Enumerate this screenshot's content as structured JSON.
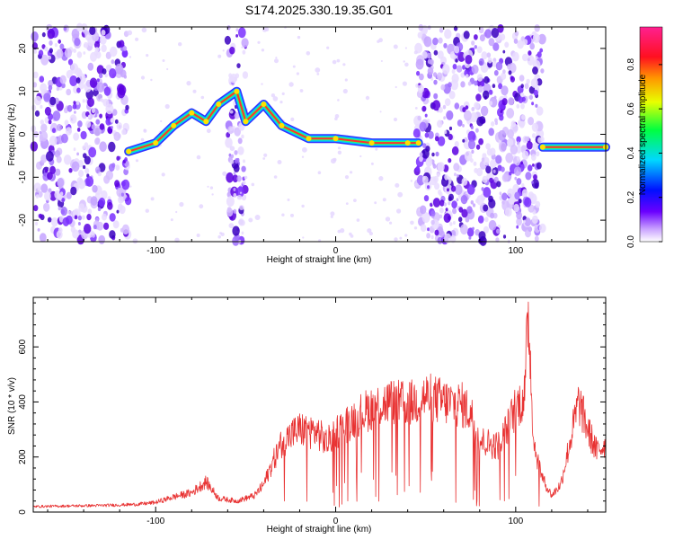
{
  "title": "S174.2025.330.19.35.G01",
  "chart_data": [
    {
      "type": "heatmap",
      "xlabel": "Height of straight line (km)",
      "ylabel": "Frequency (Hz)",
      "xlim": [
        -168,
        150
      ],
      "ylim": [
        -25,
        25
      ],
      "xticks": [
        -100,
        0,
        100
      ],
      "yticks": [
        -20,
        -10,
        0,
        10,
        20
      ],
      "colorbar": {
        "label": "Normalized spectral amplitude",
        "range": [
          0,
          0.97
        ],
        "ticks": [
          0.0,
          0.2,
          0.4,
          0.6,
          0.8
        ],
        "tick_labels": [
          "0.0",
          "0.2",
          "0.4",
          "0.6",
          "0.8"
        ],
        "colormap": "rainbow (white-violet-blue-cyan-green-yellow-orange-red-magenta)"
      },
      "ridge": [
        {
          "x": -115,
          "y": -4
        },
        {
          "x": -100,
          "y": -2
        },
        {
          "x": -90,
          "y": 2
        },
        {
          "x": -80,
          "y": 5
        },
        {
          "x": -72,
          "y": 3
        },
        {
          "x": -65,
          "y": 7
        },
        {
          "x": -55,
          "y": 10
        },
        {
          "x": -50,
          "y": 3
        },
        {
          "x": -40,
          "y": 7
        },
        {
          "x": -30,
          "y": 2
        },
        {
          "x": -15,
          "y": -1
        },
        {
          "x": 0,
          "y": -1
        },
        {
          "x": 20,
          "y": -2
        },
        {
          "x": 40,
          "y": -2
        },
        {
          "x": 46,
          "y": -2
        },
        {
          "x": 115,
          "y": -3
        },
        {
          "x": 150,
          "y": -3
        }
      ],
      "noise_regions": [
        {
          "x": [
            -168,
            -115
          ],
          "y": [
            -25,
            25
          ]
        },
        {
          "x": [
            -60,
            -50
          ],
          "y": [
            -25,
            25
          ]
        },
        {
          "x": [
            45,
            115
          ],
          "y": [
            -25,
            25
          ]
        }
      ]
    },
    {
      "type": "line",
      "xlabel": "Height of straight line (km)",
      "ylabel": "SNR (10 * v/v)",
      "xlim": [
        -168,
        150
      ],
      "ylim": [
        0,
        780
      ],
      "xticks": [
        -100,
        0,
        100
      ],
      "yticks": [
        0,
        200,
        400,
        600
      ],
      "color": "#e83232",
      "series": [
        {
          "values": [
            [
              -168,
              20
            ],
            [
              -150,
              22
            ],
            [
              -130,
              24
            ],
            [
              -110,
              28
            ],
            [
              -100,
              35
            ],
            [
              -90,
              55
            ],
            [
              -80,
              70
            ],
            [
              -72,
              110
            ],
            [
              -65,
              50
            ],
            [
              -55,
              40
            ],
            [
              -45,
              60
            ],
            [
              -40,
              100
            ],
            [
              -35,
              180
            ],
            [
              -30,
              250
            ],
            [
              -25,
              280
            ],
            [
              -20,
              300
            ],
            [
              -10,
              290
            ],
            [
              -5,
              250
            ],
            [
              0,
              290
            ],
            [
              10,
              340
            ],
            [
              20,
              380
            ],
            [
              30,
              400
            ],
            [
              40,
              390
            ],
            [
              50,
              420
            ],
            [
              60,
              400
            ],
            [
              70,
              390
            ],
            [
              75,
              360
            ],
            [
              80,
              260
            ],
            [
              90,
              240
            ],
            [
              95,
              300
            ],
            [
              100,
              380
            ],
            [
              105,
              420
            ],
            [
              107,
              740
            ],
            [
              110,
              250
            ],
            [
              115,
              120
            ],
            [
              120,
              60
            ],
            [
              125,
              100
            ],
            [
              130,
              250
            ],
            [
              135,
              400
            ],
            [
              140,
              300
            ],
            [
              145,
              220
            ],
            [
              150,
              250
            ]
          ]
        }
      ]
    }
  ]
}
